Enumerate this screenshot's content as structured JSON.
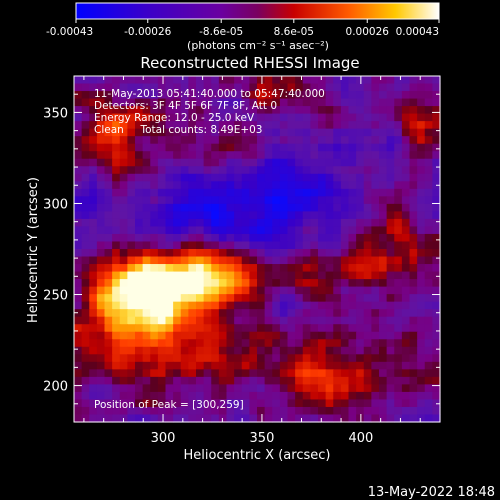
{
  "chart_data": {
    "type": "heatmap",
    "title": "Reconstructed RHESSI Image",
    "xlabel": "Heliocentric X (arcsec)",
    "ylabel": "Heliocentric Y (arcsec)",
    "xlim": [
      255,
      440
    ],
    "ylim": [
      180,
      370
    ],
    "x_ticks": [
      300,
      350,
      400
    ],
    "y_ticks": [
      200,
      250,
      300,
      350
    ],
    "colorbar": {
      "min": -0.00043,
      "max": 0.00043,
      "tick_labels": [
        "-0.00043",
        "-0.00026",
        "-8.6e-05",
        "8.6e-05",
        "0.00026",
        "0.00043"
      ],
      "tick_values": [
        -0.00043,
        -0.00026,
        -8.6e-05,
        8.6e-05,
        0.00026,
        0.00043
      ],
      "units": "(photons cm⁻² s⁻¹ asec⁻²)"
    },
    "annotation_lines": [
      "11-May-2013 05:41:40.000 to 05:47:40.000",
      "Detectors: 3F 4F 5F 6F 7F 8F, Att 0",
      "Energy Range: 12.0 - 25.0 keV",
      "Clean     Total counts: 8.49E+03"
    ],
    "peak_label": "Position of Peak = [300,259]",
    "peak": {
      "x": 300,
      "y": 259
    },
    "footer_date": "13-May-2022 18:48",
    "image_sources": [
      {
        "x": 305,
        "y": 256,
        "sx": 22,
        "sy": 12,
        "amp": 1.0
      },
      {
        "x": 285,
        "y": 248,
        "sx": 16,
        "sy": 14,
        "amp": 0.7
      },
      {
        "x": 330,
        "y": 263,
        "sx": 14,
        "sy": 10,
        "amp": 0.6
      },
      {
        "x": 300,
        "y": 222,
        "sx": 28,
        "sy": 18,
        "amp": 0.55
      },
      {
        "x": 385,
        "y": 205,
        "sx": 22,
        "sy": 14,
        "amp": 0.55
      },
      {
        "x": 395,
        "y": 265,
        "sx": 28,
        "sy": 10,
        "amp": 0.45
      },
      {
        "x": 420,
        "y": 290,
        "sx": 14,
        "sy": 12,
        "amp": 0.4
      },
      {
        "x": 275,
        "y": 330,
        "sx": 14,
        "sy": 12,
        "amp": 0.45
      },
      {
        "x": 330,
        "y": 325,
        "sx": 16,
        "sy": 10,
        "amp": 0.35
      },
      {
        "x": 285,
        "y": 345,
        "sx": 18,
        "sy": 9,
        "amp": 0.35
      },
      {
        "x": 360,
        "y": 360,
        "sx": 14,
        "sy": 8,
        "amp": 0.3
      },
      {
        "x": 430,
        "y": 345,
        "sx": 10,
        "sy": 14,
        "amp": 0.35
      },
      {
        "x": 345,
        "y": 300,
        "sx": 35,
        "sy": 22,
        "amp": -0.55
      },
      {
        "x": 260,
        "y": 290,
        "sx": 12,
        "sy": 14,
        "amp": -0.2
      }
    ]
  }
}
